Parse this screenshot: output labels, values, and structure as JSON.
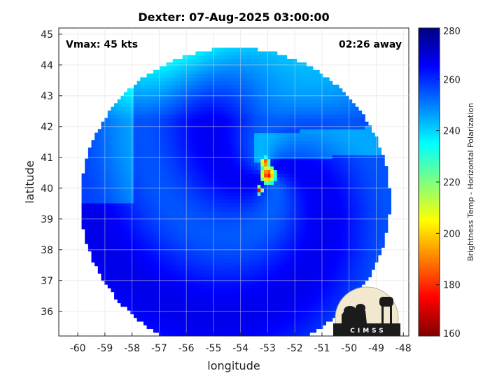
{
  "chart_data": {
    "type": "heatmap",
    "title": "Dexter: 07-Aug-2025 03:00:00",
    "xlabel": "longitude",
    "ylabel": "latitude",
    "xlim": [
      -60.7,
      -47.8
    ],
    "ylim": [
      35.2,
      45.2
    ],
    "xticks": [
      -60,
      -59,
      -58,
      -57,
      -56,
      -55,
      -54,
      -53,
      -52,
      -51,
      -50,
      -49,
      -48
    ],
    "yticks": [
      36,
      37,
      38,
      39,
      40,
      41,
      42,
      43,
      44,
      45
    ],
    "grid": true,
    "annotations": {
      "vmax": "Vmax: 45 kts",
      "time_away": "02:26 away"
    },
    "colorbar": {
      "label": "Brightness Temp - Horizontal Polarization",
      "range": [
        160,
        280
      ],
      "ticks": [
        160,
        180,
        200,
        220,
        240,
        260,
        280
      ],
      "colormap": "jet"
    },
    "storm_center": {
      "lon": -53.0,
      "lat": 40.5
    },
    "swath_center": {
      "lon": -54.2,
      "lat": 39.6
    },
    "swath_radius_deg": 5.7,
    "cold_core_min_temp": 165
  },
  "logo": {
    "text": "CIMSS",
    "name": "cimss-logo"
  },
  "colors": {
    "background": "#ffffff",
    "outside_swath": "#ffffff",
    "grid": "#d9d9d9"
  }
}
